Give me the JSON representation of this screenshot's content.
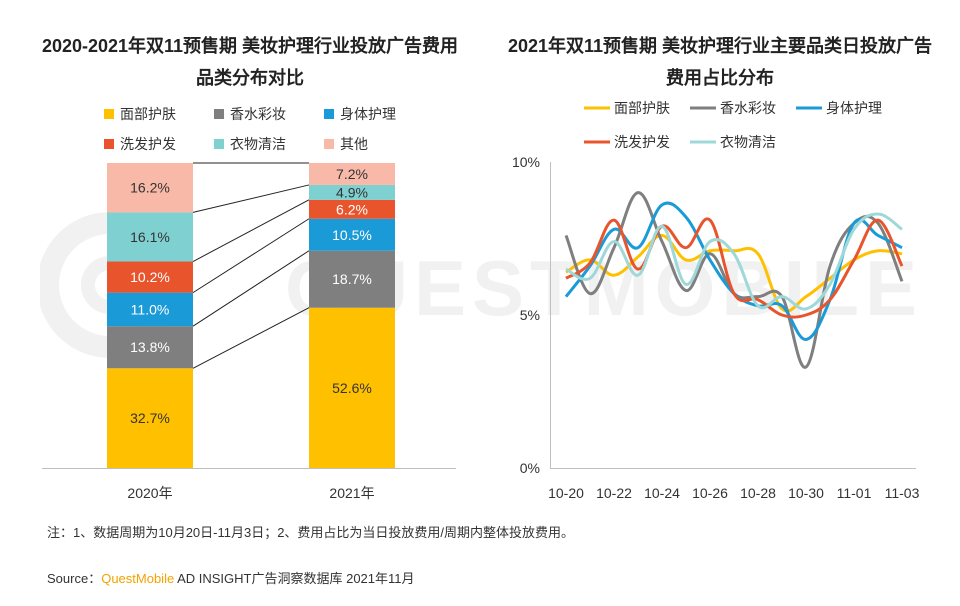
{
  "left_title": "2020-2021年双11预售期 美妆护理行业投放广告费用品类分布对比",
  "right_title": "2021年双11预售期 美妆护理行业主要品类日投放广告费用占比分布",
  "watermark": "QUESTMOBILE",
  "note": "注：1、数据周期为10月20日-11月3日；2、费用占比为当日投放费用/周期内整体投放费用。",
  "source_prefix": "Source：",
  "source_brand": "QuestMobile",
  "source_suffix": " AD INSIGHT广告洞察数据库 2021年11月",
  "chart_data": [
    {
      "type": "bar",
      "stacked": true,
      "title": "2020-2021年双11预售期 美妆护理行业投放广告费用品类分布对比",
      "categories": [
        "2020年",
        "2021年"
      ],
      "series": [
        {
          "name": "面部护肤",
          "color": "#ffc000",
          "values": [
            32.7,
            52.6
          ]
        },
        {
          "name": "香水彩妆",
          "color": "#7f7f7f",
          "values": [
            13.8,
            18.7
          ]
        },
        {
          "name": "身体护理",
          "color": "#1a9bd7",
          "values": [
            11.0,
            10.5
          ]
        },
        {
          "name": "洗发护发",
          "color": "#e8552d",
          "values": [
            10.2,
            6.2
          ]
        },
        {
          "name": "衣物清洁",
          "color": "#7fd0d0",
          "values": [
            16.1,
            4.9
          ]
        },
        {
          "name": "其他",
          "color": "#f8b9a8",
          "values": [
            16.2,
            7.2
          ]
        }
      ],
      "labels": [
        [
          "32.7%",
          "52.6%"
        ],
        [
          "13.8%",
          "18.7%"
        ],
        [
          "11.0%",
          "10.5%"
        ],
        [
          "10.2%",
          "6.2%"
        ],
        [
          "16.1%",
          "4.9%"
        ],
        [
          "16.2%",
          "7.2%"
        ]
      ],
      "legend_position": "top"
    },
    {
      "type": "line",
      "title": "2021年双11预售期 美妆护理行业主要品类日投放广告费用占比分布",
      "x": [
        "10-20",
        "10-21",
        "10-22",
        "10-23",
        "10-24",
        "10-25",
        "10-26",
        "10-27",
        "10-28",
        "10-29",
        "10-30",
        "10-31",
        "11-01",
        "11-02",
        "11-03"
      ],
      "x_tick_labels": [
        "10-20",
        "10-22",
        "10-24",
        "10-26",
        "10-28",
        "10-30",
        "11-01",
        "11-03"
      ],
      "y_tick_labels": [
        "0%",
        "5%",
        "10%"
      ],
      "ylim": [
        0,
        10
      ],
      "series": [
        {
          "name": "面部护肤",
          "color": "#ffc000",
          "values": [
            6.4,
            6.8,
            6.3,
            6.9,
            7.6,
            6.8,
            7.1,
            7.1,
            7.0,
            5.2,
            5.6,
            6.2,
            6.8,
            7.1,
            7.0
          ]
        },
        {
          "name": "香水彩妆",
          "color": "#7f7f7f",
          "values": [
            7.6,
            5.7,
            7.2,
            9.0,
            7.4,
            5.8,
            7.0,
            5.7,
            5.6,
            5.6,
            3.3,
            6.6,
            8.0,
            8.0,
            6.1
          ]
        },
        {
          "name": "身体护理",
          "color": "#1a9bd7",
          "values": [
            5.6,
            6.6,
            7.8,
            7.2,
            8.6,
            8.2,
            6.8,
            5.7,
            5.3,
            5.3,
            4.2,
            5.5,
            8.0,
            7.6,
            7.2
          ]
        },
        {
          "name": "洗发护发",
          "color": "#e8552d",
          "values": [
            6.2,
            6.7,
            8.1,
            6.5,
            7.9,
            7.2,
            8.1,
            5.7,
            5.5,
            5.0,
            5.0,
            5.5,
            6.8,
            8.1,
            6.6
          ]
        },
        {
          "name": "衣物清洁",
          "color": "#9fd8d8",
          "values": [
            6.5,
            6.2,
            7.4,
            6.3,
            7.9,
            6.0,
            7.4,
            7.0,
            5.3,
            5.6,
            5.2,
            6.0,
            7.8,
            8.3,
            7.8
          ]
        }
      ],
      "legend_position": "top"
    }
  ]
}
